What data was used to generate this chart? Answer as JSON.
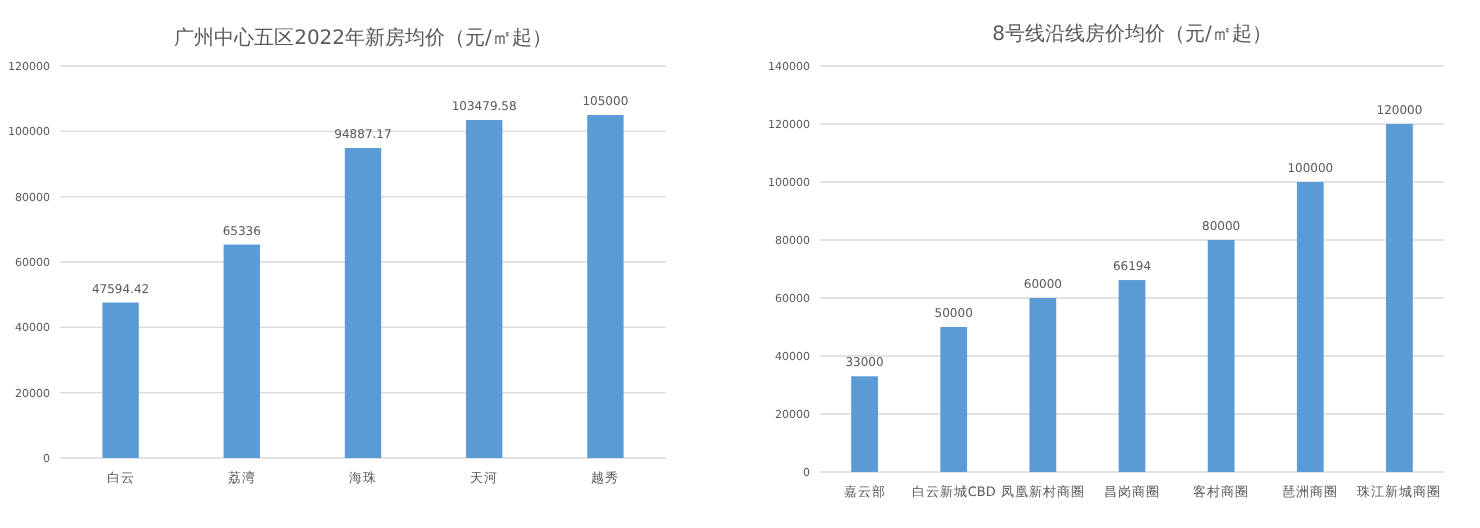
{
  "chart_data": [
    {
      "type": "bar",
      "title": "广州中心五区2022年新房均价（元/㎡起）",
      "categories": [
        "白云",
        "荔湾",
        "海珠",
        "天河",
        "越秀"
      ],
      "values": [
        47594.42,
        65336,
        94887.17,
        103479.58,
        105000
      ],
      "color": "#5b9bd5",
      "ylim": [
        0,
        120000
      ],
      "yticks": [
        0,
        20000,
        40000,
        60000,
        80000,
        100000,
        120000
      ],
      "grid": "y",
      "data_labels": true
    },
    {
      "type": "bar",
      "title": "8号线沿线房价均价（元/㎡起）",
      "categories": [
        "嘉云部",
        "白云新城CBD",
        "凤凰新村商圈",
        "昌岗商圈",
        "客村商圈",
        "琶洲商圈",
        "珠江新城商圈"
      ],
      "values": [
        33000,
        50000,
        60000,
        66194,
        80000,
        100000,
        120000
      ],
      "color": "#5b9bd5",
      "ylim": [
        0,
        140000
      ],
      "yticks": [
        0,
        20000,
        40000,
        60000,
        80000,
        100000,
        120000,
        140000
      ],
      "grid": "y",
      "data_labels": true
    }
  ]
}
